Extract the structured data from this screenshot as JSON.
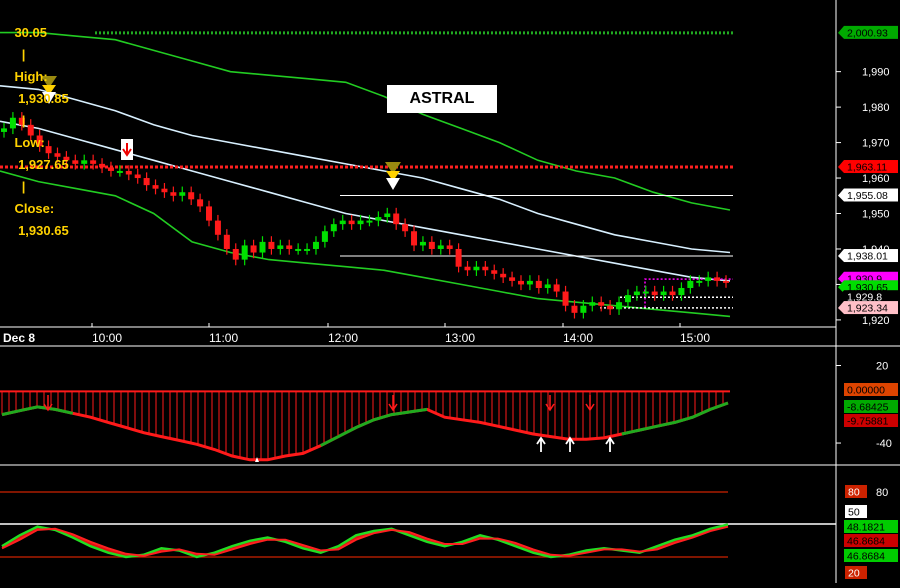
{
  "header": {
    "open_text": "30.05",
    "high_label": "High:",
    "high_value": "1,930.85",
    "low_label": "Low:",
    "low_value": "1,927.65",
    "close_label": "Close:",
    "close_value": "1,930.65",
    "sep": "|"
  },
  "annotation": {
    "text": "ASTRAL"
  },
  "colors": {
    "background": "#000000",
    "up_candle": "#00e000",
    "down_candle": "#ff1a1a",
    "band_outer": "#22cc22",
    "band_inner": "#d8f0ff",
    "resistance": "#ff2020",
    "target": "#22aa22",
    "magenta": "#ff00ff"
  },
  "chart_data": [
    {
      "type": "candlestick",
      "panel": "price",
      "x_ticks": [
        "Dec 8",
        "10:00",
        "11:00",
        "12:00",
        "13:00",
        "14:00",
        "15:00"
      ],
      "y_ticks": [
        1990,
        1980,
        1970,
        1960,
        1950,
        1940,
        1930,
        1920
      ],
      "y_tick_labels": [
        "1,990",
        "1,980",
        "1,970",
        "1,960",
        "1,950",
        "1,940",
        "1,930",
        "1,920"
      ],
      "ylim": [
        1918,
        2004
      ],
      "price_tags": [
        {
          "label": "2,000.93",
          "value": 2000.93,
          "bg": "#00aa00",
          "fg": "#000000"
        },
        {
          "label": "1,963.11",
          "value": 1963.11,
          "bg": "#ff0000",
          "fg": "#000000"
        },
        {
          "label": "1,955.08",
          "value": 1955.08,
          "bg": "#ffffff",
          "fg": "#000000"
        },
        {
          "label": "1,938.01",
          "value": 1938.01,
          "bg": "#ffffff",
          "fg": "#000000"
        },
        {
          "label": "1,930.9",
          "value": 1931.6,
          "bg": "#ff00ff",
          "fg": "#000000"
        },
        {
          "label": "1,930.65",
          "value": 1929.2,
          "bg": "#00dd00",
          "fg": "#000000"
        },
        {
          "label": "1,929.8",
          "value": 1926.4,
          "bg": "#000000",
          "fg": "#ffffff"
        },
        {
          "label": "1,923.34",
          "value": 1923.34,
          "bg": "#ffc0c8",
          "fg": "#000000"
        }
      ],
      "closes": [
        1974,
        1977,
        1975,
        1972,
        1969,
        1967,
        1966,
        1965,
        1964,
        1965,
        1964,
        1963,
        1962,
        1962,
        1961,
        1960,
        1958,
        1957,
        1956,
        1955,
        1956,
        1954,
        1952,
        1948,
        1944,
        1940,
        1937,
        1941,
        1939,
        1942,
        1940,
        1941,
        1940,
        1940,
        1940,
        1942,
        1945,
        1947,
        1948,
        1947,
        1948,
        1948,
        1949,
        1950,
        1947,
        1945,
        1941,
        1942,
        1940,
        1941,
        1940,
        1935,
        1934,
        1935,
        1934,
        1933,
        1932,
        1931,
        1930,
        1931,
        1929,
        1930,
        1928,
        1924,
        1922,
        1924,
        1925,
        1924,
        1923,
        1925,
        1927,
        1928,
        1928,
        1927,
        1928,
        1927,
        1929,
        1931,
        1931,
        1932,
        1931,
        1930.65
      ],
      "bands": {
        "outer_upper": [
          2001,
          2001,
          2000,
          1999,
          1996,
          1993,
          1990,
          1989,
          1988,
          1987,
          1983,
          1978,
          1974,
          1970,
          1965,
          1962,
          1960,
          1956,
          1953,
          1951
        ],
        "inner_upper": [
          1986,
          1985,
          1982,
          1979,
          1975,
          1972,
          1970,
          1968,
          1966,
          1964,
          1962,
          1960,
          1957,
          1954,
          1950,
          1947,
          1944,
          1942,
          1940,
          1939
        ],
        "inner_lower": [
          1976,
          1974,
          1971,
          1968,
          1965,
          1962,
          1959,
          1956,
          1953,
          1950,
          1948,
          1946,
          1944,
          1942,
          1940,
          1938,
          1936,
          1934,
          1932,
          1931
        ],
        "outer_lower": [
          1962,
          1959,
          1957,
          1955,
          1950,
          1942,
          1939,
          1937,
          1936,
          1935,
          1934,
          1932,
          1930,
          1928,
          1926,
          1925,
          1924,
          1923,
          1922,
          1921
        ]
      },
      "levels": [
        {
          "value": 2000.93,
          "style": "dotted",
          "color": "#22aa22"
        },
        {
          "value": 1963.11,
          "style": "dotted",
          "color": "#ff2020"
        },
        {
          "value": 1955.08,
          "style": "solid",
          "color": "#ffffff"
        },
        {
          "value": 1938.01,
          "style": "solid",
          "color": "#ffffff"
        }
      ]
    },
    {
      "type": "area",
      "panel": "oscillator",
      "y_ticks": [
        20,
        -40
      ],
      "ylim": [
        -57,
        32
      ],
      "value_tags": [
        {
          "label": "0.00000",
          "value": 0.0,
          "bg": "#dd4400",
          "fg": "#000000"
        },
        {
          "label": "-8.68425",
          "value": -8.68425,
          "bg": "#00aa00",
          "fg": "#000000"
        },
        {
          "label": "-9.75881",
          "value": -9.75881,
          "bg": "#cc0000",
          "fg": "#000000"
        }
      ],
      "values": [
        -18,
        -15,
        -12,
        -14,
        -17,
        -20,
        -24,
        -28,
        -32,
        -35,
        -38,
        -41,
        -45,
        -50,
        -53,
        -53,
        -50,
        -48,
        -42,
        -35,
        -28,
        -22,
        -18,
        -16,
        -14,
        -20,
        -22,
        -24,
        -27,
        -30,
        -33,
        -35,
        -37,
        -37,
        -36,
        -33,
        -30,
        -27,
        -24,
        -20,
        -14,
        -9
      ]
    },
    {
      "type": "line",
      "panel": "stochastic",
      "y_ticks": [
        80,
        50,
        20
      ],
      "ylim": [
        15,
        95
      ],
      "value_tags": [
        {
          "label": "80",
          "value": 80,
          "bg": "#cc2200",
          "fg": "#ffffff"
        },
        {
          "label": "50",
          "value": 50,
          "bg": "#ffffff",
          "fg": "#000000"
        },
        {
          "label": "48.1821",
          "value": 48.1821,
          "bg": "#00cc00",
          "fg": "#000000"
        },
        {
          "label": "46.8684",
          "value": 46.8684,
          "bg": "#cc0000",
          "fg": "#000000"
        },
        {
          "label": "46.8684",
          "value": 46.8684,
          "bg": "#00cc00",
          "fg": "#000000"
        },
        {
          "label": "20",
          "value": 20,
          "bg": "#cc2200",
          "fg": "#ffffff"
        }
      ],
      "values": [
        30,
        40,
        48,
        45,
        38,
        30,
        24,
        20,
        22,
        28,
        26,
        20,
        24,
        30,
        35,
        38,
        34,
        28,
        24,
        30,
        40,
        44,
        46,
        40,
        34,
        30,
        34,
        40,
        36,
        30,
        24,
        20,
        22,
        26,
        28,
        26,
        24,
        30,
        36,
        40,
        46,
        50
      ],
      "signal": [
        28,
        36,
        45,
        46,
        41,
        34,
        28,
        23,
        21,
        25,
        27,
        23,
        22,
        27,
        32,
        36,
        36,
        31,
        26,
        27,
        36,
        42,
        45,
        43,
        37,
        32,
        32,
        37,
        37,
        33,
        27,
        22,
        21,
        24,
        27,
        27,
        25,
        27,
        33,
        38,
        44,
        48
      ]
    }
  ]
}
